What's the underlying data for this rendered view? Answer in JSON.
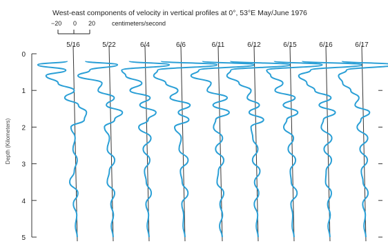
{
  "chart_data": {
    "type": "line",
    "title": "West-east components of velocity in vertical profiles at 0°, 53°E May/June 1976",
    "scale": {
      "ticks": [
        "−20",
        "0",
        "20"
      ],
      "unit": "centimeters/second"
    },
    "ylabel": "Depth (Kilometers)",
    "y_ticks": [
      "0",
      "1",
      "2",
      "3",
      "4",
      "5"
    ],
    "ylim": [
      0,
      5
    ],
    "profiles": [
      {
        "date": "5/16",
        "depth": [
          0.2,
          0.3,
          0.45,
          0.6,
          0.8,
          1.0,
          1.2,
          1.4,
          1.6,
          1.8,
          2.0,
          2.3,
          2.6,
          2.9,
          3.2,
          3.5,
          3.8,
          4.1,
          4.4,
          4.7,
          5.0
        ],
        "velocity": [
          -8,
          -45,
          -10,
          -35,
          -20,
          0,
          -12,
          5,
          15,
          12,
          -5,
          0,
          -3,
          2,
          -2,
          -8,
          2,
          -4,
          0,
          -2,
          0
        ]
      },
      {
        "date": "5/22",
        "depth": [
          0.2,
          0.3,
          0.45,
          0.6,
          0.8,
          1.0,
          1.2,
          1.4,
          1.6,
          1.8,
          2.0,
          2.3,
          2.6,
          2.9,
          3.2,
          3.5,
          3.8,
          4.1,
          4.4,
          4.7,
          5.0
        ],
        "velocity": [
          -30,
          10,
          -25,
          -40,
          -10,
          -15,
          5,
          -5,
          15,
          5,
          -8,
          -2,
          -5,
          4,
          -3,
          -6,
          3,
          -2,
          1,
          -2,
          0
        ]
      },
      {
        "date": "6/4",
        "depth": [
          0.2,
          0.3,
          0.45,
          0.6,
          0.8,
          1.0,
          1.2,
          1.4,
          1.6,
          1.8,
          2.0,
          2.3,
          2.6,
          2.9,
          3.2,
          3.5,
          3.8,
          4.1,
          4.4,
          4.7,
          5.0
        ],
        "velocity": [
          -20,
          30,
          -30,
          -25,
          -5,
          -20,
          5,
          -8,
          12,
          2,
          -10,
          5,
          -5,
          3,
          -4,
          -2,
          4,
          -3,
          0,
          -2,
          0
        ]
      },
      {
        "date": "6/6",
        "depth": [
          0.2,
          0.3,
          0.45,
          0.6,
          0.8,
          1.0,
          1.2,
          1.4,
          1.6,
          1.8,
          2.0,
          2.3,
          2.6,
          2.9,
          3.2,
          3.5,
          3.8,
          4.1,
          4.4,
          4.7,
          5.0
        ],
        "velocity": [
          -25,
          45,
          -30,
          -35,
          -20,
          -5,
          -15,
          10,
          -5,
          8,
          -10,
          -2,
          -5,
          6,
          -4,
          -2,
          5,
          -3,
          -1,
          -2,
          0
        ]
      },
      {
        "date": "6/11",
        "depth": [
          0.2,
          0.3,
          0.45,
          0.6,
          0.8,
          1.0,
          1.2,
          1.4,
          1.6,
          1.8,
          2.0,
          2.3,
          2.6,
          2.9,
          3.2,
          3.5,
          3.8,
          4.1,
          4.4,
          4.7,
          5.0
        ],
        "velocity": [
          -20,
          45,
          -25,
          -35,
          -10,
          -15,
          10,
          -8,
          12,
          -5,
          -8,
          3,
          -6,
          4,
          -3,
          -5,
          3,
          -2,
          1,
          -3,
          0
        ]
      },
      {
        "date": "6/12",
        "depth": [
          0.2,
          0.3,
          0.45,
          0.6,
          0.8,
          1.0,
          1.2,
          1.4,
          1.6,
          1.8,
          2.0,
          2.3,
          2.6,
          2.9,
          3.2,
          3.5,
          3.8,
          4.1,
          4.4,
          4.7,
          5.0
        ],
        "velocity": [
          -30,
          45,
          -30,
          -35,
          -20,
          -5,
          -10,
          5,
          -8,
          10,
          -6,
          -4,
          2,
          -5,
          4,
          -3,
          2,
          -4,
          0,
          -2,
          0
        ]
      },
      {
        "date": "6/15",
        "depth": [
          0.2,
          0.3,
          0.45,
          0.6,
          0.8,
          1.0,
          1.2,
          1.4,
          1.6,
          1.8,
          2.0,
          2.3,
          2.6,
          2.9,
          3.2,
          3.5,
          3.8,
          4.1,
          4.4,
          4.7,
          5.0
        ],
        "velocity": [
          -20,
          40,
          -30,
          -25,
          -10,
          -20,
          5,
          -10,
          8,
          -6,
          -10,
          2,
          -5,
          4,
          -3,
          -2,
          5,
          -3,
          -1,
          -2,
          0
        ]
      },
      {
        "date": "6/16",
        "depth": [
          0.2,
          0.3,
          0.45,
          0.6,
          0.8,
          1.0,
          1.2,
          1.4,
          1.6,
          1.8,
          2.0,
          2.3,
          2.6,
          2.9,
          3.2,
          3.5,
          3.8,
          4.1,
          4.4,
          4.7,
          5.0
        ],
        "velocity": [
          -30,
          45,
          -20,
          -35,
          -25,
          -15,
          5,
          -10,
          10,
          -5,
          -8,
          5,
          -5,
          4,
          -3,
          -4,
          3,
          -2,
          1,
          -2,
          0
        ]
      },
      {
        "date": "6/17",
        "depth": [
          0.2,
          0.3,
          0.45,
          0.6,
          0.8,
          1.0,
          1.2,
          1.4,
          1.6,
          1.8,
          2.0,
          2.3,
          2.6,
          2.9,
          3.2,
          3.5,
          3.8,
          4.1,
          4.4,
          4.7,
          5.0
        ],
        "velocity": [
          -25,
          40,
          -20,
          -30,
          -25,
          -15,
          -5,
          -10,
          8,
          -3,
          -8,
          5,
          -5,
          4,
          -4,
          -2,
          4,
          -3,
          0,
          -2,
          0
        ]
      }
    ],
    "line_color": "#2a9fd6",
    "baseline_color": "#333333",
    "grid": false
  }
}
